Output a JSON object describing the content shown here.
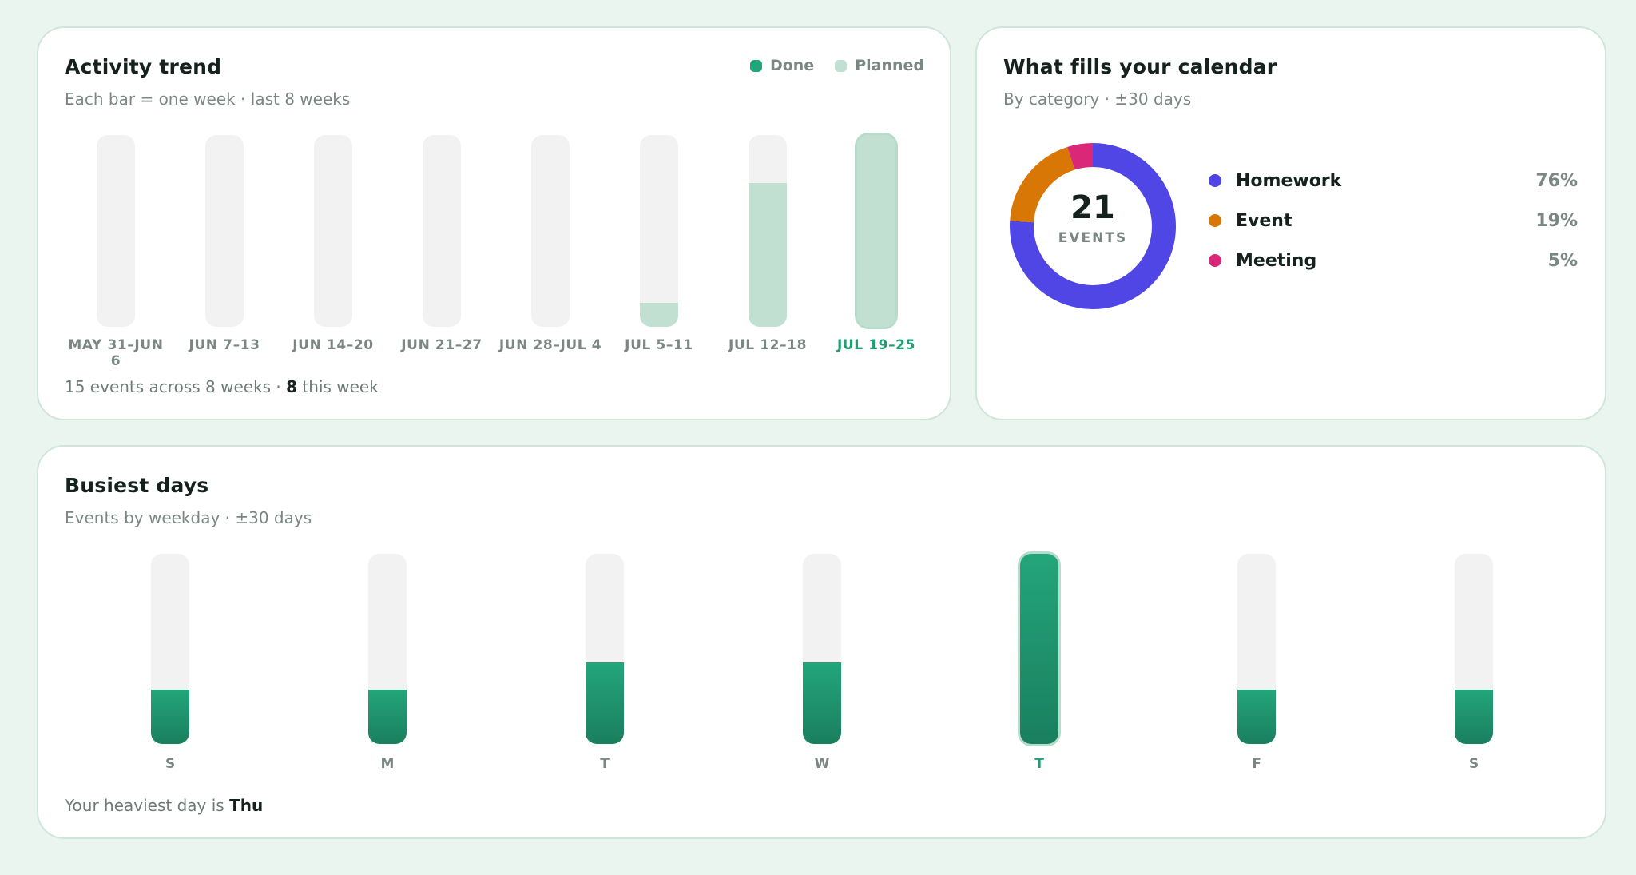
{
  "activity": {
    "title": "Activity trend",
    "subtitle": "Each bar = one week · last 8 weeks",
    "legend": [
      {
        "label": "Done",
        "color": "#22a579"
      },
      {
        "label": "Planned",
        "color": "#c1e0d2"
      }
    ],
    "footer_prefix": "15 events across 8 weeks · ",
    "footer_count": "8",
    "footer_suffix": " this week"
  },
  "calendar": {
    "title": "What fills your calendar",
    "subtitle": "By category · ±30 days",
    "total": "21",
    "total_unit": "EVENTS",
    "categories": [
      {
        "name": "Homework",
        "pct": "76%",
        "color": "#4f46e5"
      },
      {
        "name": "Event",
        "pct": "19%",
        "color": "#d97706"
      },
      {
        "name": "Meeting",
        "pct": "5%",
        "color": "#db2777"
      }
    ]
  },
  "busiest": {
    "title": "Busiest days",
    "subtitle": "Events by weekday · ±30 days",
    "footer_prefix": "Your heaviest day is ",
    "footer_day": "Thu"
  },
  "chart_data": [
    {
      "type": "bar",
      "title": "Activity trend",
      "categories": [
        "MAY 31–JUN 6",
        "JUN 7–13",
        "JUN 14–20",
        "JUN 21–27",
        "JUN 28–JUL 4",
        "JUL 5–11",
        "JUL 12–18",
        "JUL 19–25"
      ],
      "series": [
        {
          "name": "Done",
          "values": [
            0,
            0,
            0,
            0,
            0,
            0,
            0,
            0
          ]
        },
        {
          "name": "Planned",
          "values": [
            0,
            0,
            0,
            0,
            0,
            1,
            6,
            8
          ]
        }
      ],
      "ylim": [
        0,
        8
      ],
      "highlight": "JUL 19–25"
    },
    {
      "type": "pie",
      "title": "What fills your calendar",
      "categories": [
        "Homework",
        "Event",
        "Meeting"
      ],
      "values": [
        76,
        19,
        5
      ]
    },
    {
      "type": "bar",
      "title": "Busiest days",
      "categories": [
        "S",
        "M",
        "T",
        "W",
        "T",
        "F",
        "S"
      ],
      "values": [
        2,
        2,
        3,
        3,
        7,
        2,
        2
      ],
      "ylim": [
        0,
        7
      ],
      "highlight": 4
    }
  ]
}
